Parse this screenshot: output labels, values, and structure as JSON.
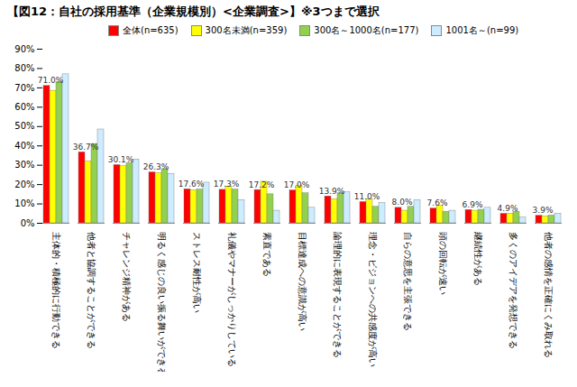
{
  "chart_data": {
    "type": "bar",
    "title": "【図12：自社の採用基準（企業規模別）<企業調査>】※3つまで選択",
    "categories": [
      "主体的・積極的に行動できる",
      "他者と協調することができる",
      "チャレンジ精神がある",
      "明るく感じの良い振る舞いができる",
      "ストレス耐性が高い",
      "礼儀やマナーがしっかりしている",
      "素直である",
      "目標達成への意識が高い",
      "論理的に表現することができる",
      "理念・ビジョンへの共感度が高い",
      "自らの意思を主張できる",
      "頭の回転が速い",
      "継続性がある",
      "多くのアイデアを発想できる",
      "他者の感情を正確にくみ取れる"
    ],
    "series": [
      {
        "name": "全体(n=635)",
        "color": "#ff0000",
        "data_labels": true,
        "values": [
          71.0,
          36.7,
          30.1,
          26.3,
          17.6,
          17.3,
          17.2,
          17.0,
          13.9,
          11.0,
          8.0,
          7.6,
          6.9,
          4.9,
          3.9
        ],
        "value_labels": [
          "71.0%",
          "36.7%",
          "30.1%",
          "26.3%",
          "17.6%",
          "17.3%",
          "17.2%",
          "17.0%",
          "13.9%",
          "11.0%",
          "8.0%",
          "7.6%",
          "6.9%",
          "4.9%",
          "3.9%"
        ]
      },
      {
        "name": "300名未満(n=359)",
        "color": "#ffff00",
        "values": [
          68.5,
          32,
          29.5,
          26,
          17,
          19,
          21.5,
          19.5,
          12.5,
          12.5,
          6.5,
          9,
          6.5,
          5,
          3.5
        ]
      },
      {
        "name": "300名～1000名(n=177)",
        "color": "#92d050",
        "values": [
          73,
          41,
          31,
          28,
          17.5,
          17.5,
          15,
          15.5,
          15.5,
          8.5,
          8.5,
          6,
          7,
          6,
          4
        ]
      },
      {
        "name": "1001名～(n=99)",
        "color": "#ccecff",
        "values": [
          77,
          48.5,
          33,
          25.5,
          21,
          12,
          6.5,
          8,
          16,
          10.5,
          12,
          6.5,
          8,
          3,
          5
        ]
      }
    ],
    "ylim": [
      0,
      90
    ],
    "yticks": [
      {
        "value": 0,
        "label": "0%"
      },
      {
        "value": 10,
        "label": "10%"
      },
      {
        "value": 20,
        "label": "20%"
      },
      {
        "value": 30,
        "label": "30%"
      },
      {
        "value": 40,
        "label": "40%"
      },
      {
        "value": 50,
        "label": "50%"
      },
      {
        "value": 60,
        "label": "60%"
      },
      {
        "value": 70,
        "label": "70%"
      },
      {
        "value": 80,
        "label": "80%"
      },
      {
        "value": 90,
        "label": "90%"
      }
    ],
    "grid": false,
    "legend": "top"
  }
}
